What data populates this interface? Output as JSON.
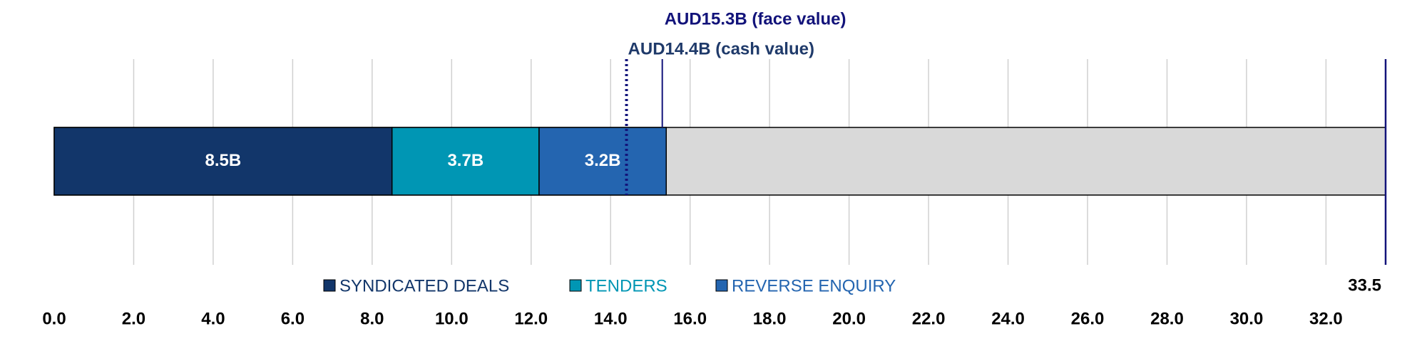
{
  "chart_data": {
    "type": "stacked-bar-h",
    "series": [
      {
        "name": "SYNDICATED DEALS",
        "color": "#12366a",
        "values": [
          8.5
        ],
        "value_labels": [
          "8.5B"
        ]
      },
      {
        "name": "TENDERS",
        "color": "#0096b4",
        "values": [
          3.7
        ],
        "value_labels": [
          "3.7B"
        ]
      },
      {
        "name": "REVERSE ENQUIRY",
        "color": "#2465b0",
        "values": [
          3.2
        ],
        "value_labels": [
          "3.2B"
        ]
      }
    ],
    "legend_text_colors": [
      "#12366a",
      "#0096b4",
      "#2465b0"
    ],
    "total": 33.5,
    "total_color": "#d9d9d9",
    "reference_lines": [
      {
        "value": 15.3,
        "label": "AUD15.3B (face value)",
        "style": "solid",
        "color": "#12137a"
      },
      {
        "value": 14.4,
        "label": "AUD14.4B (cash value)",
        "style": "dotted",
        "color": "#12137a"
      }
    ],
    "xlim": [
      0,
      33.5
    ],
    "xticks": [
      {
        "value": 0,
        "label": "0.0"
      },
      {
        "value": 2,
        "label": "2.0"
      },
      {
        "value": 4,
        "label": "4.0"
      },
      {
        "value": 6,
        "label": "6.0"
      },
      {
        "value": 8,
        "label": "8.0"
      },
      {
        "value": 10,
        "label": "10.0"
      },
      {
        "value": 12,
        "label": "12.0"
      },
      {
        "value": 14,
        "label": "14.0"
      },
      {
        "value": 16,
        "label": "16.0"
      },
      {
        "value": 18,
        "label": "18.0"
      },
      {
        "value": 20,
        "label": "20.0"
      },
      {
        "value": 22,
        "label": "22.0"
      },
      {
        "value": 24,
        "label": "24.0"
      },
      {
        "value": 26,
        "label": "26.0"
      },
      {
        "value": 28,
        "label": "28.0"
      },
      {
        "value": 30,
        "label": "30.0"
      },
      {
        "value": 32,
        "label": "32.0"
      }
    ],
    "grid": true
  }
}
